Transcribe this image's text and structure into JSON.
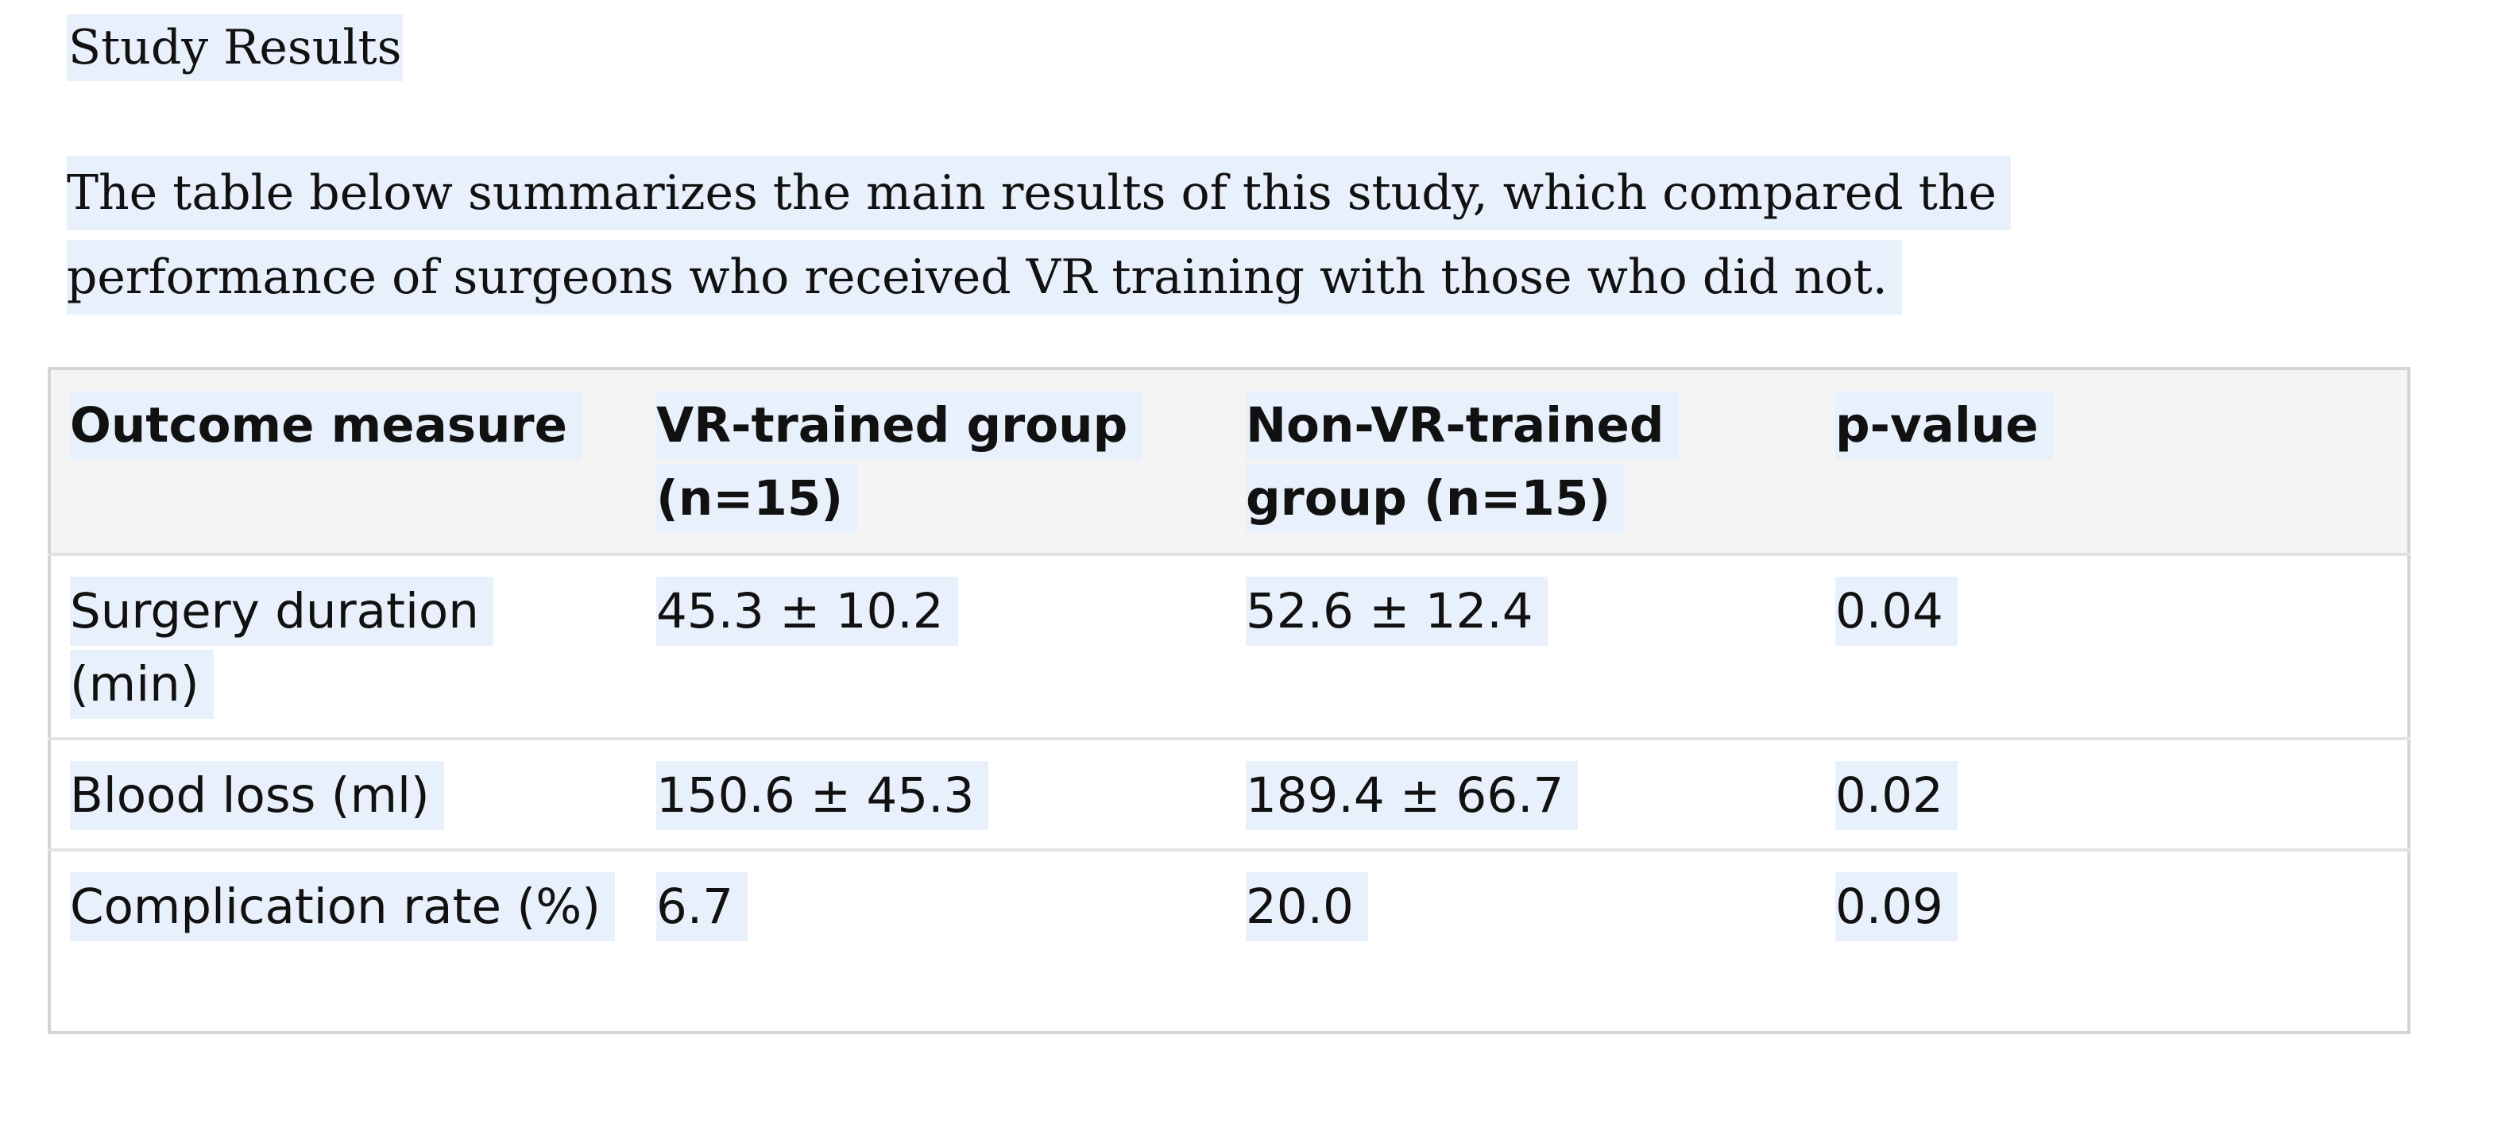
{
  "document": {
    "heading": "Study Results",
    "paragraph_lines": [
      "The table below summarizes the main results of this study, which compared the",
      "performance of surgeons who received VR training with those who did not."
    ]
  },
  "table": {
    "headers": [
      "Outcome measure",
      "VR-trained group (n=15)",
      "Non-VR-trained group (n=15)",
      "p-value"
    ],
    "rows": [
      [
        "Surgery duration (min)",
        "45.3 ± 10.2",
        "52.6 ± 12.4",
        "0.04"
      ],
      [
        "Blood loss (ml)",
        "150.6 ± 45.3",
        "189.4 ± 66.7",
        "0.02"
      ],
      [
        "Complication rate (%)",
        "6.7",
        "20.0",
        "0.09"
      ]
    ]
  },
  "colors": {
    "highlight": "#e8f0fb",
    "header_background": "#f4f4f4",
    "border": "#d4d4d4"
  }
}
